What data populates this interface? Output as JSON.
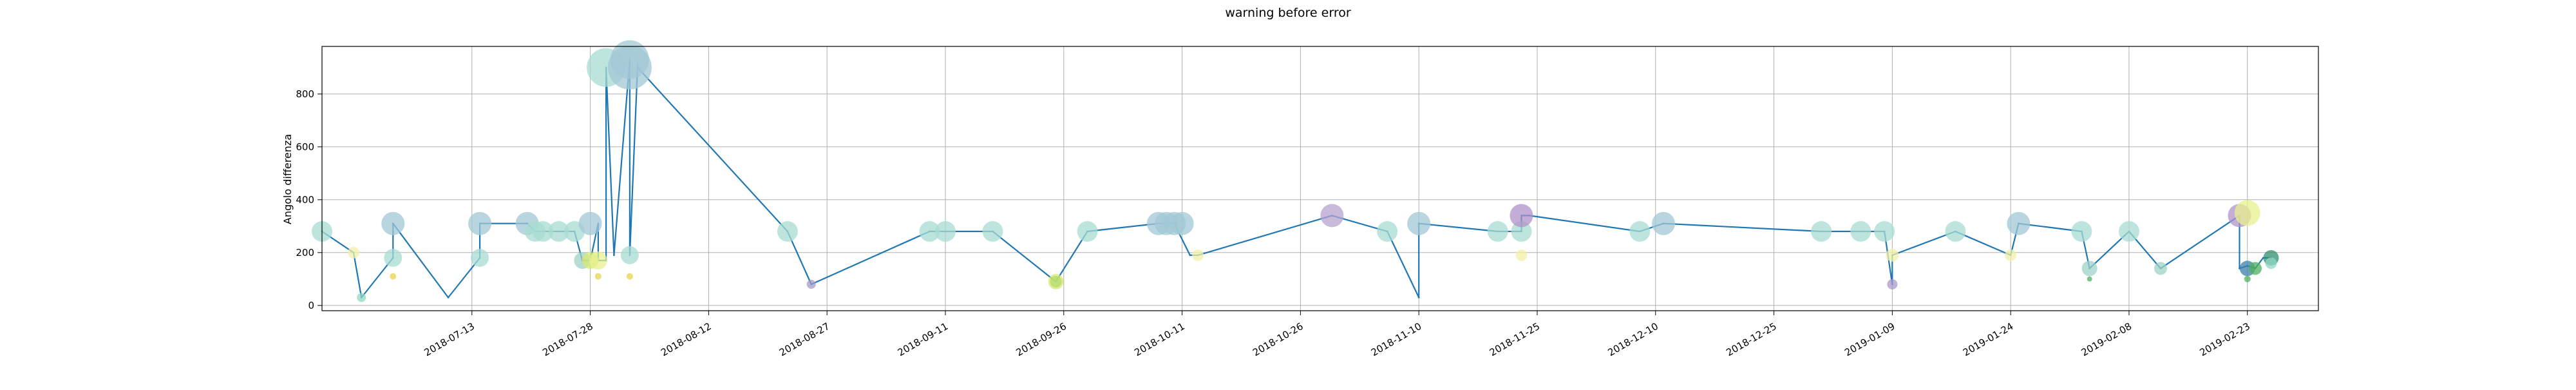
{
  "chart_data": {
    "type": "line",
    "title": "warning before error",
    "xlabel": "",
    "ylabel": "Angolo differenza",
    "x_axis_type": "date",
    "xlim": [
      "2018-06-24",
      "2019-03-04"
    ],
    "ylim": [
      -20,
      980
    ],
    "grid": true,
    "x_ticks": [
      "2018-07-13",
      "2018-07-28",
      "2018-08-12",
      "2018-08-27",
      "2018-09-11",
      "2018-09-26",
      "2018-10-11",
      "2018-10-26",
      "2018-11-10",
      "2018-11-25",
      "2018-12-10",
      "2018-12-25",
      "2019-01-09",
      "2019-01-24",
      "2019-02-08",
      "2019-02-23"
    ],
    "y_ticks": [
      0,
      200,
      400,
      600,
      800
    ],
    "series": [
      {
        "color": "#1f77b4",
        "x": [
          "2018-06-24",
          "2018-06-28",
          "2018-06-29",
          "2018-07-03",
          "2018-07-03",
          "2018-07-10",
          "2018-07-14",
          "2018-07-14",
          "2018-07-20",
          "2018-07-21",
          "2018-07-22",
          "2018-07-24",
          "2018-07-26",
          "2018-07-27",
          "2018-07-28",
          "2018-07-29",
          "2018-07-29",
          "2018-07-30",
          "2018-07-30",
          "2018-07-31",
          "2018-08-02",
          "2018-08-02",
          "2018-08-03",
          "2018-08-03",
          "2018-08-22",
          "2018-08-25",
          "2018-09-09",
          "2018-09-11",
          "2018-09-17",
          "2018-09-25",
          "2018-09-29",
          "2018-10-08",
          "2018-10-09",
          "2018-10-10",
          "2018-10-12",
          "2018-10-13",
          "2018-10-30",
          "2018-11-06",
          "2018-11-10",
          "2018-11-10",
          "2018-11-20",
          "2018-11-23",
          "2018-11-23",
          "2018-11-24",
          "2018-12-08",
          "2018-12-11",
          "2018-12-31",
          "2019-01-05",
          "2019-01-08",
          "2019-01-09",
          "2019-01-09",
          "2019-01-17",
          "2019-01-24",
          "2019-01-25",
          "2019-02-02",
          "2019-02-03",
          "2019-02-03",
          "2019-02-08",
          "2019-02-12",
          "2019-02-22",
          "2019-02-22",
          "2019-02-23",
          "2019-02-24",
          "2019-02-25",
          "2019-02-26"
        ],
        "y": [
          280,
          200,
          30,
          180,
          310,
          30,
          180,
          310,
          310,
          280,
          280,
          280,
          280,
          170,
          170,
          310,
          170,
          170,
          900,
          190,
          930,
          190,
          910,
          900,
          280,
          80,
          280,
          280,
          280,
          90,
          280,
          310,
          310,
          310,
          190,
          190,
          340,
          280,
          30,
          310,
          280,
          280,
          340,
          340,
          280,
          310,
          280,
          280,
          280,
          80,
          190,
          280,
          190,
          310,
          280,
          140,
          140,
          280,
          140,
          340,
          140,
          150,
          140,
          180,
          180
        ]
      }
    ],
    "markers": [
      {
        "x": "2018-06-24",
        "y": 280,
        "color": "#a8dcd1",
        "size": 16
      },
      {
        "x": "2018-06-28",
        "y": 200,
        "color": "#f2f0a8",
        "size": 9
      },
      {
        "x": "2018-06-29",
        "y": 30,
        "color": "#8fd6c4",
        "size": 7
      },
      {
        "x": "2018-07-03",
        "y": 180,
        "color": "#a8dcd1",
        "size": 14
      },
      {
        "x": "2018-07-03",
        "y": 310,
        "color": "#a2c8d6",
        "size": 18
      },
      {
        "x": "2018-07-03",
        "y": 110,
        "color": "#e6d44a",
        "size": 5
      },
      {
        "x": "2018-07-14",
        "y": 180,
        "color": "#a8dcd1",
        "size": 14
      },
      {
        "x": "2018-07-14",
        "y": 310,
        "color": "#a2c8d6",
        "size": 18
      },
      {
        "x": "2018-07-20",
        "y": 310,
        "color": "#a2c8d6",
        "size": 18
      },
      {
        "x": "2018-07-21",
        "y": 280,
        "color": "#a8dcd1",
        "size": 16
      },
      {
        "x": "2018-07-22",
        "y": 280,
        "color": "#a8dcd1",
        "size": 16
      },
      {
        "x": "2018-07-24",
        "y": 280,
        "color": "#a8dcd1",
        "size": 16
      },
      {
        "x": "2018-07-26",
        "y": 280,
        "color": "#a8dcd1",
        "size": 16
      },
      {
        "x": "2018-07-27",
        "y": 170,
        "color": "#9fd3c6",
        "size": 13
      },
      {
        "x": "2018-07-28",
        "y": 310,
        "color": "#a2c8d6",
        "size": 18
      },
      {
        "x": "2018-07-28",
        "y": 170,
        "color": "#d7ea72",
        "size": 13
      },
      {
        "x": "2018-07-29",
        "y": 170,
        "color": "#e8f08c",
        "size": 14
      },
      {
        "x": "2018-07-29",
        "y": 110,
        "color": "#e6d44a",
        "size": 5
      },
      {
        "x": "2018-07-30",
        "y": 900,
        "color": "#a8dcd1",
        "size": 30
      },
      {
        "x": "2018-08-02",
        "y": 900,
        "color": "#a2c8d6",
        "size": 34
      },
      {
        "x": "2018-08-02",
        "y": 930,
        "color": "#a2c8d6",
        "size": 30
      },
      {
        "x": "2018-08-02",
        "y": 190,
        "color": "#a8dcd1",
        "size": 14
      },
      {
        "x": "2018-08-02",
        "y": 110,
        "color": "#e6d44a",
        "size": 5
      },
      {
        "x": "2018-08-22",
        "y": 280,
        "color": "#a8dcd1",
        "size": 16
      },
      {
        "x": "2018-08-25",
        "y": 80,
        "color": "#a79ac8",
        "size": 7
      },
      {
        "x": "2018-09-09",
        "y": 280,
        "color": "#a8dcd1",
        "size": 16
      },
      {
        "x": "2018-09-11",
        "y": 280,
        "color": "#a8dcd1",
        "size": 16
      },
      {
        "x": "2018-09-17",
        "y": 280,
        "color": "#a8dcd1",
        "size": 16
      },
      {
        "x": "2018-09-25",
        "y": 90,
        "color": "#4db05f",
        "size": 9
      },
      {
        "x": "2018-09-25",
        "y": 90,
        "color": "#d7ea72",
        "size": 12
      },
      {
        "x": "2018-09-29",
        "y": 280,
        "color": "#a8dcd1",
        "size": 16
      },
      {
        "x": "2018-10-08",
        "y": 310,
        "color": "#a2c8d6",
        "size": 18
      },
      {
        "x": "2018-10-09",
        "y": 310,
        "color": "#a2c8d6",
        "size": 18
      },
      {
        "x": "2018-10-10",
        "y": 310,
        "color": "#a2c8d6",
        "size": 18
      },
      {
        "x": "2018-10-11",
        "y": 310,
        "color": "#a2c8d6",
        "size": 18
      },
      {
        "x": "2018-10-13",
        "y": 190,
        "color": "#f2f0a8",
        "size": 9
      },
      {
        "x": "2018-10-30",
        "y": 340,
        "color": "#b7a3d0",
        "size": 18
      },
      {
        "x": "2018-11-06",
        "y": 280,
        "color": "#a8dcd1",
        "size": 16
      },
      {
        "x": "2018-11-10",
        "y": 310,
        "color": "#a2c8d6",
        "size": 18
      },
      {
        "x": "2018-11-20",
        "y": 280,
        "color": "#a8dcd1",
        "size": 16
      },
      {
        "x": "2018-11-23",
        "y": 280,
        "color": "#a8dcd1",
        "size": 16
      },
      {
        "x": "2018-11-23",
        "y": 340,
        "color": "#b091c8",
        "size": 18
      },
      {
        "x": "2018-11-23",
        "y": 190,
        "color": "#f2f0a8",
        "size": 9
      },
      {
        "x": "2018-12-08",
        "y": 280,
        "color": "#a8dcd1",
        "size": 16
      },
      {
        "x": "2018-12-11",
        "y": 310,
        "color": "#a2c8d6",
        "size": 18
      },
      {
        "x": "2018-12-31",
        "y": 280,
        "color": "#a8dcd1",
        "size": 16
      },
      {
        "x": "2019-01-05",
        "y": 280,
        "color": "#a8dcd1",
        "size": 16
      },
      {
        "x": "2019-01-08",
        "y": 280,
        "color": "#a8dcd1",
        "size": 16
      },
      {
        "x": "2019-01-09",
        "y": 190,
        "color": "#f2f0a8",
        "size": 10
      },
      {
        "x": "2019-01-09",
        "y": 80,
        "color": "#a79ac8",
        "size": 8
      },
      {
        "x": "2019-01-17",
        "y": 280,
        "color": "#a8dcd1",
        "size": 16
      },
      {
        "x": "2019-01-24",
        "y": 190,
        "color": "#f2f0a8",
        "size": 9
      },
      {
        "x": "2019-01-25",
        "y": 310,
        "color": "#a2c8d6",
        "size": 18
      },
      {
        "x": "2019-02-02",
        "y": 280,
        "color": "#a8dcd1",
        "size": 16
      },
      {
        "x": "2019-02-03",
        "y": 140,
        "color": "#9fd3c6",
        "size": 12
      },
      {
        "x": "2019-02-03",
        "y": 100,
        "color": "#4db05f",
        "size": 4
      },
      {
        "x": "2019-02-08",
        "y": 280,
        "color": "#a8dcd1",
        "size": 16
      },
      {
        "x": "2019-02-12",
        "y": 140,
        "color": "#9fd3c6",
        "size": 10
      },
      {
        "x": "2019-02-22",
        "y": 340,
        "color": "#b091c8",
        "size": 18
      },
      {
        "x": "2019-02-23",
        "y": 350,
        "color": "#e8f08c",
        "size": 20
      },
      {
        "x": "2019-02-23",
        "y": 140,
        "color": "#3b82a8",
        "size": 12
      },
      {
        "x": "2019-02-23",
        "y": 100,
        "color": "#4db05f",
        "size": 5
      },
      {
        "x": "2019-02-24",
        "y": 140,
        "color": "#4db05f",
        "size": 10
      },
      {
        "x": "2019-02-26",
        "y": 180,
        "color": "#2f8f6e",
        "size": 12
      },
      {
        "x": "2019-02-26",
        "y": 160,
        "color": "#8fd6c4",
        "size": 9
      }
    ]
  }
}
